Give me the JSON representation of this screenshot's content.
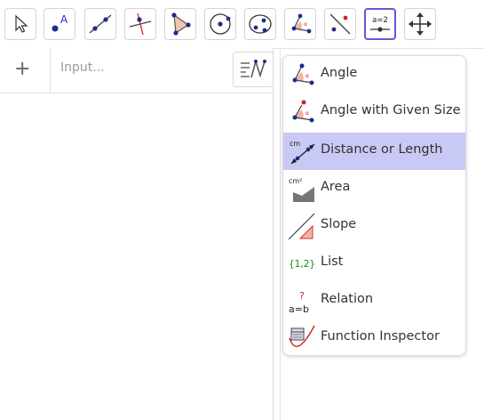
{
  "toolbar": {
    "tools": [
      {
        "name": "move-tool",
        "icon": "arrow-cursor-icon"
      },
      {
        "name": "point-tool",
        "icon": "point-icon",
        "glyph": "A"
      },
      {
        "name": "line-tool",
        "icon": "line-icon"
      },
      {
        "name": "perpendicular-line-tool",
        "icon": "perpendicular-line-icon"
      },
      {
        "name": "polygon-tool",
        "icon": "polygon-icon"
      },
      {
        "name": "circle-tool",
        "icon": "circle-center-point-icon"
      },
      {
        "name": "conic-tool",
        "icon": "ellipse-icon"
      },
      {
        "name": "angle-tool",
        "icon": "angle-icon"
      },
      {
        "name": "reflect-tool",
        "icon": "reflect-icon"
      },
      {
        "name": "slider-tool",
        "icon": "slider-icon",
        "glyph": "a=2",
        "active": true
      },
      {
        "name": "move-graphics-view-tool",
        "icon": "move-view-icon"
      }
    ],
    "accent_color": "#6557d2"
  },
  "algebra": {
    "add_label": "+",
    "input_placeholder": "Input...",
    "keyboard_icon": "algebra-keyboard-icon"
  },
  "menu": {
    "selected_color": "#c9c9f5",
    "items": [
      {
        "label": "Angle",
        "icon": "angle-icon"
      },
      {
        "label": "Angle with Given Size",
        "icon": "angle-given-size-icon"
      },
      {
        "label": "Distance or Length",
        "icon": "distance-icon",
        "icon_text": "cm",
        "selected": true
      },
      {
        "label": "Area",
        "icon": "area-icon",
        "icon_text": "cm²"
      },
      {
        "label": "Slope",
        "icon": "slope-icon"
      },
      {
        "label": "List",
        "icon": "list-icon",
        "icon_text": "{1,2}"
      },
      {
        "label": "Relation",
        "icon": "relation-icon",
        "icon_text": "a=b",
        "icon_sup": "?"
      },
      {
        "label": "Function Inspector",
        "icon": "function-inspector-icon"
      }
    ]
  }
}
